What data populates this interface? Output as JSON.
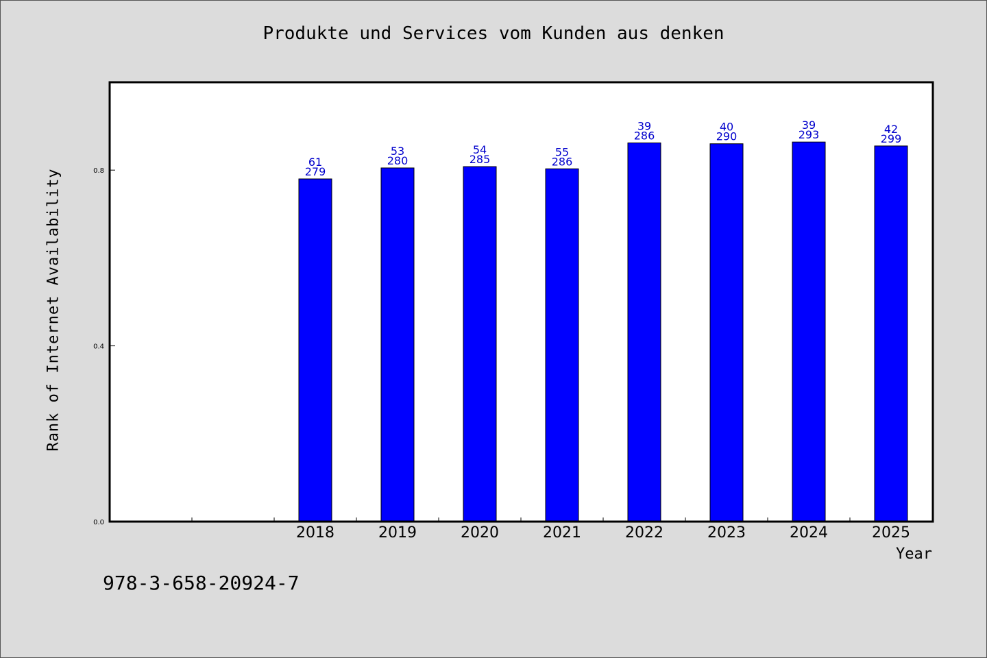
{
  "chart_data": {
    "type": "bar",
    "title": "Produkte und Services vom Kunden aus denken",
    "xlabel": "Year",
    "ylabel": "Rank of Internet Availability",
    "categories": [
      "",
      "",
      "2018",
      "2019",
      "2020",
      "2021",
      "2022",
      "2023",
      "2024",
      "2025"
    ],
    "values": [
      null,
      null,
      0.78,
      0.805,
      0.808,
      0.803,
      0.862,
      0.86,
      0.864,
      0.855
    ],
    "labels_top": [
      "",
      "",
      "61",
      "53",
      "54",
      "55",
      "39",
      "40",
      "39",
      "42"
    ],
    "labels_bottom": [
      "",
      "",
      "279",
      "280",
      "285",
      "286",
      "286",
      "290",
      "293",
      "299"
    ],
    "yticks": [
      "0.0",
      "0.4",
      "0.8"
    ],
    "ytick_values": [
      0.0,
      0.4,
      0.8
    ],
    "ylim": [
      0.0,
      1.0
    ],
    "grid": false,
    "bar_color": "#0000ff",
    "label_color": "#0000cc"
  },
  "footer": {
    "isbn": "978-3-658-20924-7"
  }
}
